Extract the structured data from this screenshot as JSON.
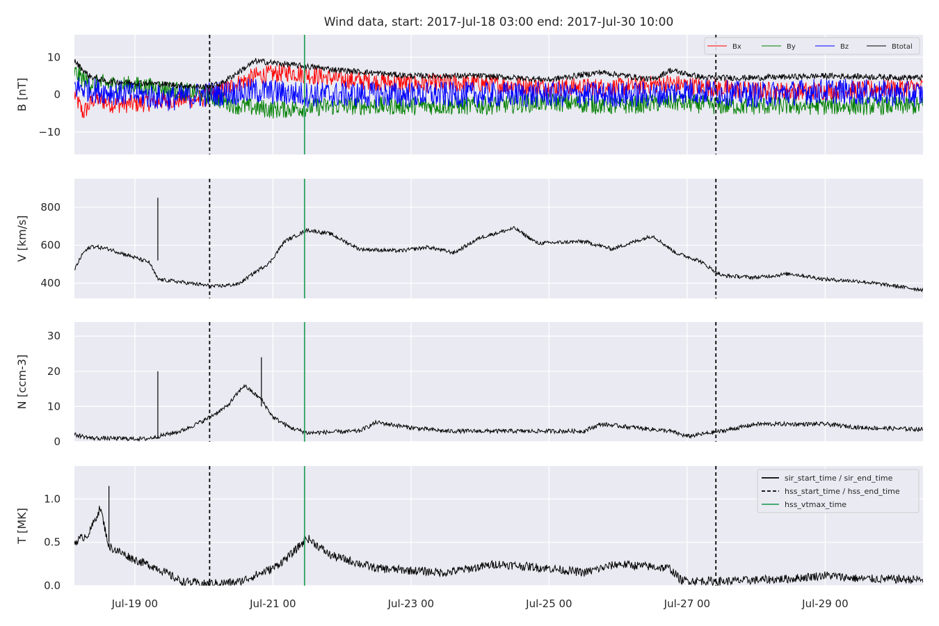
{
  "chart_data": {
    "type": "line",
    "title": "Wind data, start: 2017-Jul-18 03:00  end: 2017-Jul-30 10:00",
    "x_range": [
      "2017-07-18T03:00",
      "2017-07-30T10:00"
    ],
    "x_ticks": [
      {
        "date": "2017-07-19T00:00",
        "label": "Jul-19 00"
      },
      {
        "date": "2017-07-21T00:00",
        "label": "Jul-21 00"
      },
      {
        "date": "2017-07-23T00:00",
        "label": "Jul-23 00"
      },
      {
        "date": "2017-07-25T00:00",
        "label": "Jul-25 00"
      },
      {
        "date": "2017-07-27T00:00",
        "label": "Jul-27 00"
      },
      {
        "date": "2017-07-29T00:00",
        "label": "Jul-29 00"
      }
    ],
    "events": {
      "hss_start_time": "2017-07-20T02:00",
      "hss_vtmax_time": "2017-07-21T11:00",
      "hss_end_time": "2017-07-27T10:00"
    },
    "panels": [
      {
        "ylabel": "B [nT]",
        "ylim": [
          -16,
          16
        ],
        "yticks": [
          10,
          0,
          -10
        ],
        "ytick_labels": [
          "10",
          "0",
          "−10"
        ],
        "legend": {
          "position": "top-right",
          "entries": [
            "Bx",
            "By",
            "Bz",
            "Btotal"
          ]
        },
        "series": [
          {
            "name": "Bx",
            "color": "#ff0000",
            "noise": 2.5,
            "points": [
              [
                "2017-07-18T03:00",
                0
              ],
              [
                "2017-07-18T06:00",
                -5
              ],
              [
                "2017-07-18T10:00",
                -1
              ],
              [
                "2017-07-18T16:00",
                -2.5
              ],
              [
                "2017-07-19T00:00",
                -2.5
              ],
              [
                "2017-07-19T12:00",
                -1.5
              ],
              [
                "2017-07-20T00:00",
                -1
              ],
              [
                "2017-07-20T06:00",
                1
              ],
              [
                "2017-07-20T18:00",
                5
              ],
              [
                "2017-07-21T06:00",
                6
              ],
              [
                "2017-07-22T00:00",
                4
              ],
              [
                "2017-07-23T00:00",
                3
              ],
              [
                "2017-07-24T00:00",
                3
              ],
              [
                "2017-07-25T00:00",
                2
              ],
              [
                "2017-07-26T00:00",
                2
              ],
              [
                "2017-07-26T18:00",
                3
              ],
              [
                "2017-07-27T06:00",
                2
              ],
              [
                "2017-07-28T00:00",
                1
              ],
              [
                "2017-07-29T00:00",
                1
              ],
              [
                "2017-07-30T10:00",
                2
              ]
            ]
          },
          {
            "name": "By",
            "color": "#008000",
            "noise": 2.5,
            "points": [
              [
                "2017-07-18T03:00",
                6
              ],
              [
                "2017-07-18T08:00",
                3
              ],
              [
                "2017-07-19T00:00",
                2.5
              ],
              [
                "2017-07-19T12:00",
                1.5
              ],
              [
                "2017-07-20T00:00",
                0
              ],
              [
                "2017-07-20T12:00",
                -3
              ],
              [
                "2017-07-21T00:00",
                -4
              ],
              [
                "2017-07-22T00:00",
                -3
              ],
              [
                "2017-07-23T00:00",
                -3
              ],
              [
                "2017-07-24T00:00",
                -3
              ],
              [
                "2017-07-25T00:00",
                -2
              ],
              [
                "2017-07-26T00:00",
                -3
              ],
              [
                "2017-07-26T18:00",
                -2
              ],
              [
                "2017-07-27T12:00",
                -3
              ],
              [
                "2017-07-28T12:00",
                -3
              ],
              [
                "2017-07-30T10:00",
                -3
              ]
            ]
          },
          {
            "name": "Bz",
            "color": "#0000ff",
            "noise": 3.5,
            "points": [
              [
                "2017-07-18T03:00",
                2
              ],
              [
                "2017-07-18T12:00",
                1
              ],
              [
                "2017-07-19T00:00",
                0
              ],
              [
                "2017-07-19T12:00",
                -1
              ],
              [
                "2017-07-20T00:00",
                0
              ],
              [
                "2017-07-20T18:00",
                1
              ],
              [
                "2017-07-21T12:00",
                0
              ],
              [
                "2017-07-22T12:00",
                0
              ],
              [
                "2017-07-24T00:00",
                0
              ],
              [
                "2017-07-25T12:00",
                0
              ],
              [
                "2017-07-26T12:00",
                0
              ],
              [
                "2017-07-27T00:00",
                1
              ],
              [
                "2017-07-28T00:00",
                0
              ],
              [
                "2017-07-29T00:00",
                1
              ],
              [
                "2017-07-30T10:00",
                0
              ]
            ]
          },
          {
            "name": "Btotal",
            "color": "#000000",
            "noise": 0.8,
            "points": [
              [
                "2017-07-18T03:00",
                9
              ],
              [
                "2017-07-18T08:00",
                5
              ],
              [
                "2017-07-18T14:00",
                3.5
              ],
              [
                "2017-07-19T06:00",
                3
              ],
              [
                "2017-07-20T00:00",
                2
              ],
              [
                "2017-07-20T06:00",
                3
              ],
              [
                "2017-07-20T18:00",
                9
              ],
              [
                "2017-07-21T06:00",
                8
              ],
              [
                "2017-07-22T00:00",
                6.5
              ],
              [
                "2017-07-23T00:00",
                5
              ],
              [
                "2017-07-24T00:00",
                5
              ],
              [
                "2017-07-25T00:00",
                4
              ],
              [
                "2017-07-25T18:00",
                6
              ],
              [
                "2017-07-26T12:00",
                4
              ],
              [
                "2017-07-26T18:00",
                6.5
              ],
              [
                "2017-07-27T06:00",
                4.5
              ],
              [
                "2017-07-28T00:00",
                4.5
              ],
              [
                "2017-07-29T00:00",
                5
              ],
              [
                "2017-07-30T10:00",
                4.5
              ]
            ]
          }
        ]
      },
      {
        "ylabel": "V [km/s]",
        "ylim": [
          320,
          950
        ],
        "yticks": [
          800,
          600,
          400
        ],
        "ytick_labels": [
          "800",
          "600",
          "400"
        ],
        "series": [
          {
            "name": "V",
            "color": "#000000",
            "noise": 10,
            "points": [
              [
                "2017-07-18T03:00",
                470
              ],
              [
                "2017-07-18T06:00",
                560
              ],
              [
                "2017-07-18T09:00",
                595
              ],
              [
                "2017-07-18T15:00",
                580
              ],
              [
                "2017-07-18T22:00",
                545
              ],
              [
                "2017-07-19T05:00",
                510
              ],
              [
                "2017-07-19T08:00",
                420
              ],
              [
                "2017-07-19T14:00",
                410
              ],
              [
                "2017-07-20T00:00",
                390
              ],
              [
                "2017-07-20T04:00",
                383
              ],
              [
                "2017-07-20T12:00",
                395
              ],
              [
                "2017-07-20T18:00",
                460
              ],
              [
                "2017-07-20T23:00",
                510
              ],
              [
                "2017-07-21T04:00",
                620
              ],
              [
                "2017-07-21T12:00",
                680
              ],
              [
                "2017-07-21T20:00",
                660
              ],
              [
                "2017-07-22T06:00",
                580
              ],
              [
                "2017-07-22T20:00",
                570
              ],
              [
                "2017-07-23T06:00",
                590
              ],
              [
                "2017-07-23T15:00",
                560
              ],
              [
                "2017-07-24T00:00",
                640
              ],
              [
                "2017-07-24T12:00",
                690
              ],
              [
                "2017-07-24T20:00",
                610
              ],
              [
                "2017-07-25T12:00",
                620
              ],
              [
                "2017-07-25T22:00",
                580
              ],
              [
                "2017-07-26T12:00",
                650
              ],
              [
                "2017-07-26T20:00",
                560
              ],
              [
                "2017-07-27T04:00",
                520
              ],
              [
                "2017-07-27T12:00",
                440
              ],
              [
                "2017-07-28T00:00",
                430
              ],
              [
                "2017-07-28T12:00",
                450
              ],
              [
                "2017-07-29T00:00",
                420
              ],
              [
                "2017-07-29T12:00",
                410
              ],
              [
                "2017-07-30T10:00",
                365
              ]
            ]
          }
        ]
      },
      {
        "ylabel": "N [ccm-3]",
        "ylim": [
          0,
          34
        ],
        "yticks": [
          30,
          20,
          10,
          0
        ],
        "ytick_labels": [
          "30",
          "20",
          "10",
          "0"
        ],
        "series": [
          {
            "name": "N",
            "color": "#000000",
            "noise": 0.6,
            "points": [
              [
                "2017-07-18T03:00",
                2
              ],
              [
                "2017-07-18T09:00",
                1
              ],
              [
                "2017-07-19T04:00",
                0.8
              ],
              [
                "2017-07-19T08:00",
                1.5
              ],
              [
                "2017-07-19T16:00",
                3
              ],
              [
                "2017-07-20T00:00",
                6
              ],
              [
                "2017-07-20T08:00",
                10
              ],
              [
                "2017-07-20T14:00",
                16
              ],
              [
                "2017-07-20T20:00",
                12
              ],
              [
                "2017-07-21T00:00",
                7
              ],
              [
                "2017-07-21T06:00",
                4
              ],
              [
                "2017-07-21T12:00",
                2.5
              ],
              [
                "2017-07-22T06:00",
                3
              ],
              [
                "2017-07-22T12:00",
                5.5
              ],
              [
                "2017-07-23T00:00",
                4
              ],
              [
                "2017-07-23T12:00",
                3
              ],
              [
                "2017-07-24T12:00",
                3
              ],
              [
                "2017-07-25T12:00",
                3
              ],
              [
                "2017-07-25T18:00",
                5
              ],
              [
                "2017-07-26T06:00",
                4
              ],
              [
                "2017-07-26T18:00",
                3
              ],
              [
                "2017-07-27T00:00",
                1.5
              ],
              [
                "2017-07-27T12:00",
                3
              ],
              [
                "2017-07-28T00:00",
                5
              ],
              [
                "2017-07-29T00:00",
                5
              ],
              [
                "2017-07-29T12:00",
                4
              ],
              [
                "2017-07-30T10:00",
                3.5
              ]
            ]
          }
        ]
      },
      {
        "ylabel": "T [MK]",
        "ylim": [
          0,
          1.38
        ],
        "yticks": [
          1.0,
          0.5,
          0.0
        ],
        "ytick_labels": [
          "1.0",
          "0.5",
          "0.0"
        ],
        "legend": {
          "position": "top-right",
          "entries": [
            "sir_start_time / sir_end_time",
            "hss_start_time / hss_end_time",
            "hss_vtmax_time"
          ]
        },
        "series": [
          {
            "name": "T",
            "color": "#000000",
            "noise": 0.05,
            "points": [
              [
                "2017-07-18T03:00",
                0.5
              ],
              [
                "2017-07-18T08:00",
                0.6
              ],
              [
                "2017-07-18T12:00",
                0.9
              ],
              [
                "2017-07-18T15:00",
                0.45
              ],
              [
                "2017-07-19T00:00",
                0.3
              ],
              [
                "2017-07-19T08:00",
                0.2
              ],
              [
                "2017-07-19T16:00",
                0.05
              ],
              [
                "2017-07-20T00:00",
                0.02
              ],
              [
                "2017-07-20T12:00",
                0.04
              ],
              [
                "2017-07-21T00:00",
                0.2
              ],
              [
                "2017-07-21T06:00",
                0.35
              ],
              [
                "2017-07-21T12:00",
                0.55
              ],
              [
                "2017-07-21T20:00",
                0.35
              ],
              [
                "2017-07-22T12:00",
                0.2
              ],
              [
                "2017-07-23T12:00",
                0.15
              ],
              [
                "2017-07-24T06:00",
                0.25
              ],
              [
                "2017-07-25T00:00",
                0.2
              ],
              [
                "2017-07-25T12:00",
                0.15
              ],
              [
                "2017-07-26T00:00",
                0.25
              ],
              [
                "2017-07-26T18:00",
                0.2
              ],
              [
                "2017-07-26T22:00",
                0.06
              ],
              [
                "2017-07-27T12:00",
                0.05
              ],
              [
                "2017-07-28T12:00",
                0.08
              ],
              [
                "2017-07-29T00:00",
                0.12
              ],
              [
                "2017-07-29T12:00",
                0.08
              ],
              [
                "2017-07-30T10:00",
                0.07
              ]
            ]
          }
        ]
      }
    ],
    "spikes": [
      {
        "panel": 1,
        "date": "2017-07-19T08:00",
        "from": 520,
        "to": 850
      },
      {
        "panel": 2,
        "date": "2017-07-19T08:00",
        "from": 1,
        "to": 20
      },
      {
        "panel": 2,
        "date": "2017-07-20T20:00",
        "from": 10,
        "to": 24
      },
      {
        "panel": 3,
        "date": "2017-07-18T15:00",
        "from": 0.5,
        "to": 1.15
      }
    ]
  }
}
